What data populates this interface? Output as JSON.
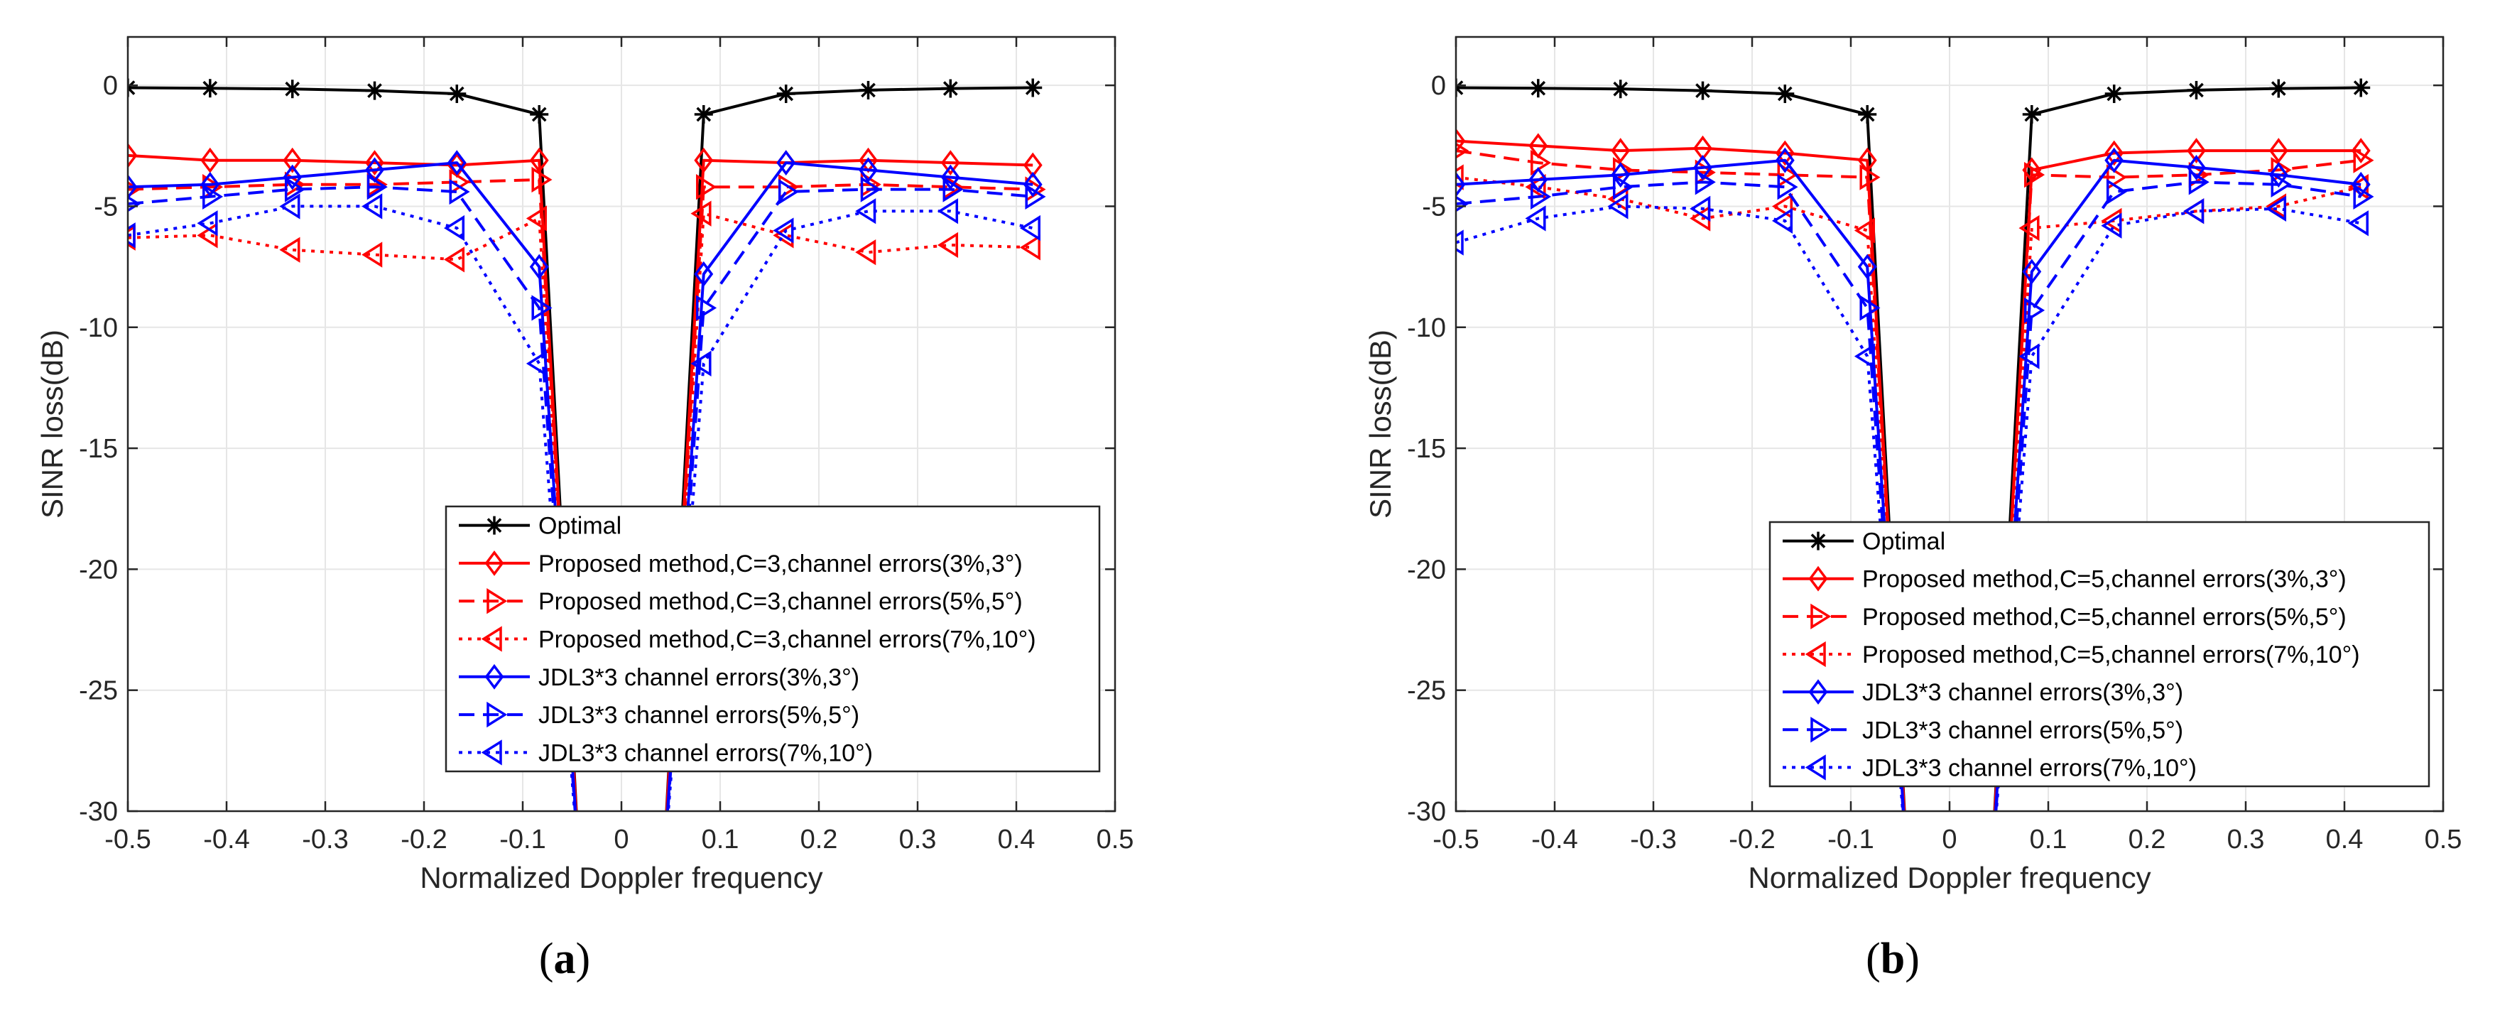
{
  "colors": {
    "optimal": "#000000",
    "proposed": "#ff0000",
    "jdl": "#0000ff",
    "grid": "#e6e6e6",
    "axis": "#262626"
  },
  "chart_data": [
    {
      "type": "line",
      "caption_open": "(",
      "caption_letter": "a",
      "caption_close": ")",
      "xlabel": "Normalized Doppler frequency",
      "ylabel": "SINR loss(dB)",
      "xlim": [
        -0.5,
        0.5
      ],
      "ylim": [
        -30,
        2
      ],
      "xticks": [
        -0.5,
        -0.4,
        -0.3,
        -0.2,
        -0.1,
        0,
        0.1,
        0.2,
        0.3,
        0.4,
        0.5
      ],
      "yticks": [
        0,
        -5,
        -10,
        -15,
        -20,
        -25,
        -30
      ],
      "grid": true,
      "legend_placement": "bottom-right",
      "x": [
        -0.5,
        -0.4167,
        -0.3333,
        -0.25,
        -0.1667,
        -0.0833,
        -0.0417,
        0.0417,
        0.0833,
        0.1667,
        0.25,
        0.3333,
        0.4167
      ],
      "series": [
        {
          "name": "Optimal",
          "color": "optimal",
          "dash": "solid",
          "marker": "asterisk",
          "values": [
            -0.1,
            -0.12,
            -0.15,
            -0.22,
            -0.35,
            -1.2,
            -33,
            -33,
            -1.2,
            -0.35,
            -0.2,
            -0.13,
            -0.1
          ]
        },
        {
          "name": "Proposed method,C=3,channel errors(3%,3°)",
          "color": "proposed",
          "dash": "solid",
          "marker": "diamond",
          "values": [
            -2.9,
            -3.1,
            -3.1,
            -3.2,
            -3.3,
            -3.1,
            -33,
            -33,
            -3.1,
            -3.2,
            -3.1,
            -3.2,
            -3.3
          ]
        },
        {
          "name": "Proposed method,C=3,channel errors(5%,5°)",
          "color": "proposed",
          "dash": "dashed",
          "marker": "tri-right",
          "values": [
            -4.3,
            -4.2,
            -4.1,
            -4.1,
            -4.0,
            -3.9,
            -33,
            -33,
            -4.2,
            -4.2,
            -4.1,
            -4.2,
            -4.3
          ]
        },
        {
          "name": "Proposed method,C=3,channel errors(7%,10°)",
          "color": "proposed",
          "dash": "dotted",
          "marker": "tri-left",
          "values": [
            -6.3,
            -6.2,
            -6.8,
            -7.0,
            -7.2,
            -5.5,
            -33,
            -33,
            -5.3,
            -6.2,
            -6.9,
            -6.6,
            -6.7
          ]
        },
        {
          "name": "JDL3*3 channel errors(3%,3°)",
          "color": "jdl",
          "dash": "solid",
          "marker": "diamond",
          "values": [
            -4.2,
            -4.1,
            -3.8,
            -3.5,
            -3.2,
            -7.5,
            -33,
            -33,
            -7.8,
            -3.2,
            -3.5,
            -3.8,
            -4.1
          ]
        },
        {
          "name": "JDL3*3 channel errors(5%,5°)",
          "color": "jdl",
          "dash": "dashed",
          "marker": "tri-right",
          "values": [
            -4.9,
            -4.6,
            -4.3,
            -4.2,
            -4.4,
            -9.2,
            -33,
            -33,
            -9.2,
            -4.4,
            -4.3,
            -4.3,
            -4.6
          ]
        },
        {
          "name": "JDL3*3 channel errors(7%,10°)",
          "color": "jdl",
          "dash": "dotted",
          "marker": "tri-left",
          "values": [
            -6.2,
            -5.7,
            -5.0,
            -5.0,
            -5.9,
            -11.5,
            -33,
            -33,
            -11.5,
            -6.0,
            -5.2,
            -5.2,
            -5.9
          ]
        }
      ]
    },
    {
      "type": "line",
      "caption_open": "(",
      "caption_letter": "b",
      "caption_close": ")",
      "xlabel": "Normalized Doppler frequency",
      "ylabel": "SINR loss(dB)",
      "xlim": [
        -0.5,
        0.5
      ],
      "ylim": [
        -30,
        2
      ],
      "xticks": [
        -0.5,
        -0.4,
        -0.3,
        -0.2,
        -0.1,
        0,
        0.1,
        0.2,
        0.3,
        0.4,
        0.5
      ],
      "yticks": [
        0,
        -5,
        -10,
        -15,
        -20,
        -25,
        -30
      ],
      "grid": true,
      "legend_placement": "bottom-right",
      "x": [
        -0.5,
        -0.4167,
        -0.3333,
        -0.25,
        -0.1667,
        -0.0833,
        -0.0417,
        0.0417,
        0.0833,
        0.1667,
        0.25,
        0.3333,
        0.4167
      ],
      "series": [
        {
          "name": "Optimal",
          "color": "optimal",
          "dash": "solid",
          "marker": "asterisk",
          "values": [
            -0.1,
            -0.12,
            -0.15,
            -0.22,
            -0.35,
            -1.2,
            -33,
            -33,
            -1.2,
            -0.35,
            -0.2,
            -0.13,
            -0.1
          ]
        },
        {
          "name": "Proposed method,C=5,channel errors(3%,3°)",
          "color": "proposed",
          "dash": "solid",
          "marker": "diamond",
          "values": [
            -2.3,
            -2.5,
            -2.7,
            -2.6,
            -2.8,
            -3.1,
            -33,
            -33,
            -3.5,
            -2.8,
            -2.7,
            -2.7,
            -2.7
          ]
        },
        {
          "name": "Proposed method,C=5,channel errors(5%,5°)",
          "color": "proposed",
          "dash": "dashed",
          "marker": "tri-right",
          "values": [
            -2.7,
            -3.2,
            -3.5,
            -3.6,
            -3.7,
            -3.8,
            -33,
            -33,
            -3.7,
            -3.8,
            -3.7,
            -3.5,
            -3.1
          ]
        },
        {
          "name": "Proposed method,C=5,channel errors(7%,10°)",
          "color": "proposed",
          "dash": "dotted",
          "marker": "tri-left",
          "values": [
            -3.8,
            -4.2,
            -4.7,
            -5.5,
            -5.0,
            -6.0,
            -33,
            -33,
            -5.9,
            -5.6,
            -5.2,
            -5.0,
            -4.2
          ]
        },
        {
          "name": "JDL3*3 channel errors(3%,3°)",
          "color": "jdl",
          "dash": "solid",
          "marker": "diamond",
          "values": [
            -4.1,
            -3.9,
            -3.7,
            -3.4,
            -3.1,
            -7.5,
            -33,
            -33,
            -7.7,
            -3.1,
            -3.4,
            -3.7,
            -4.1
          ]
        },
        {
          "name": "JDL3*3 channel errors(5%,5°)",
          "color": "jdl",
          "dash": "dashed",
          "marker": "tri-right",
          "values": [
            -4.9,
            -4.6,
            -4.2,
            -4.0,
            -4.2,
            -9.2,
            -33,
            -33,
            -9.3,
            -4.4,
            -4.0,
            -4.1,
            -4.6
          ]
        },
        {
          "name": "JDL3*3 channel errors(7%,10°)",
          "color": "jdl",
          "dash": "dotted",
          "marker": "tri-left",
          "values": [
            -6.5,
            -5.5,
            -5.0,
            -5.1,
            -5.6,
            -11.2,
            -33,
            -33,
            -11.2,
            -5.8,
            -5.2,
            -5.1,
            -5.7
          ]
        }
      ]
    }
  ]
}
